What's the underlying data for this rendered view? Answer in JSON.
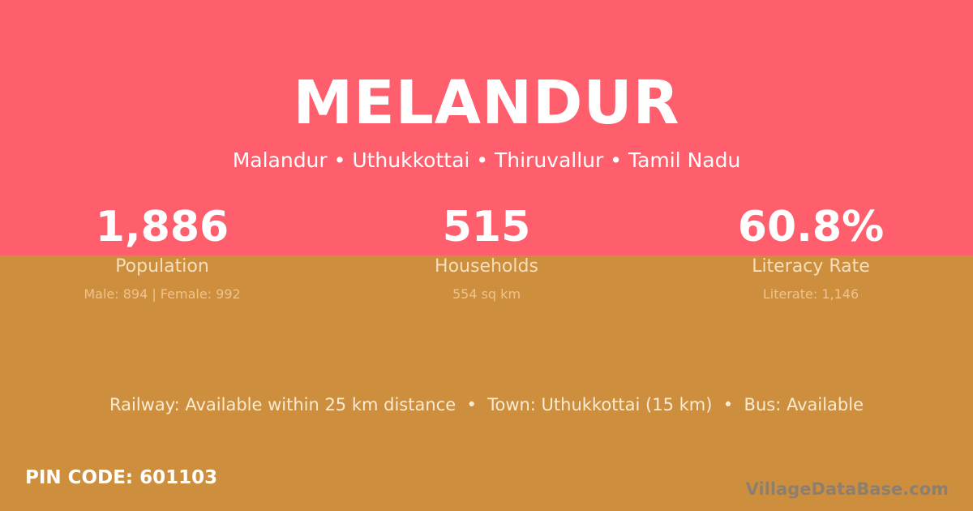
{
  "colors": {
    "top": "#FF5F6D",
    "bottom": "#CD8F3E"
  },
  "title": "MELANDUR",
  "subtitle": "Malandur • Uthukkottai • Thiruvallur • Tamil Nadu",
  "stats": [
    {
      "value": "1,886",
      "label": "Population",
      "sub": "Male: 894 | Female: 992"
    },
    {
      "value": "515",
      "label": "Households",
      "sub": "554 sq km"
    },
    {
      "value": "60.8%",
      "label": "Literacy Rate",
      "sub": "Literate: 1,146"
    }
  ],
  "info": "Railway: Available within 25 km distance  •  Town: Uthukkottai (15 km)  •  Bus: Available",
  "pin": "PIN CODE: 601103",
  "watermark": "VillageDataBase.com"
}
